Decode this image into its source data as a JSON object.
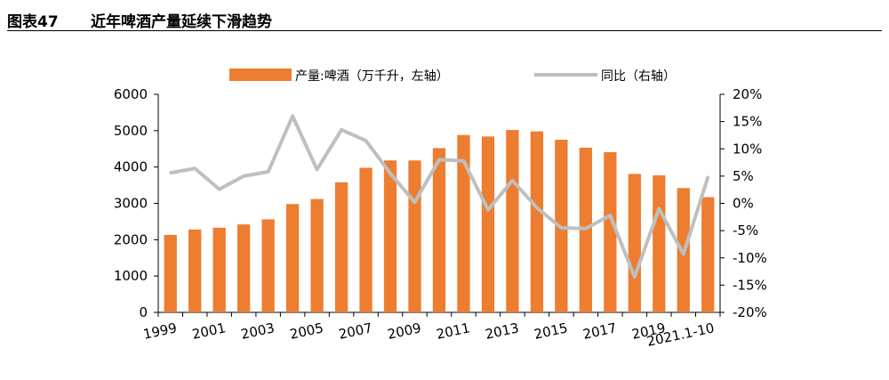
{
  "figure": {
    "number": "图表47",
    "title": "近年啤酒产量延续下滑趋势"
  },
  "chart_data": {
    "type": "bar",
    "categories": [
      "1999",
      "2000",
      "2001",
      "2002",
      "2003",
      "2004",
      "2005",
      "2006",
      "2007",
      "2008",
      "2009",
      "2010",
      "2011",
      "2012",
      "2013",
      "2014",
      "2015",
      "2016",
      "2017",
      "2018",
      "2019",
      "2020",
      "2021.1-10"
    ],
    "x_tick_labels": [
      "1999",
      "2001",
      "2003",
      "2005",
      "2007",
      "2009",
      "2011",
      "2013",
      "2015",
      "2017",
      "2019",
      "2021.1-10"
    ],
    "series": [
      {
        "name": "产量:啤酒（万千升，左轴）",
        "type": "bar",
        "axis": "left",
        "color": "#ED7D31",
        "values": [
          2130,
          2280,
          2330,
          2420,
          2560,
          2980,
          3120,
          3580,
          3980,
          4180,
          4180,
          4520,
          4880,
          4840,
          5020,
          4980,
          4750,
          4530,
          4410,
          3810,
          3770,
          3420,
          3170
        ]
      },
      {
        "name": "同比（右轴）",
        "type": "line",
        "axis": "right",
        "color": "#BFBFBF",
        "values": [
          5.6,
          6.4,
          2.6,
          5.0,
          5.8,
          16.0,
          6.2,
          13.5,
          11.5,
          5.5,
          0.2,
          8.0,
          7.8,
          -1.2,
          4.2,
          -0.8,
          -4.5,
          -4.6,
          -2.2,
          -13.5,
          -1.0,
          -9.3,
          4.8
        ]
      }
    ],
    "yleft": {
      "min": 0,
      "max": 6000,
      "step": 1000,
      "ticks": [
        "0",
        "1000",
        "2000",
        "3000",
        "4000",
        "5000",
        "6000"
      ]
    },
    "yright": {
      "min": -20,
      "max": 20,
      "step": 5,
      "ticks": [
        "-20%",
        "-15%",
        "-10%",
        "-5%",
        "0%",
        "5%",
        "10%",
        "15%",
        "20%"
      ]
    },
    "legend_position": "top-center",
    "grid": false
  }
}
